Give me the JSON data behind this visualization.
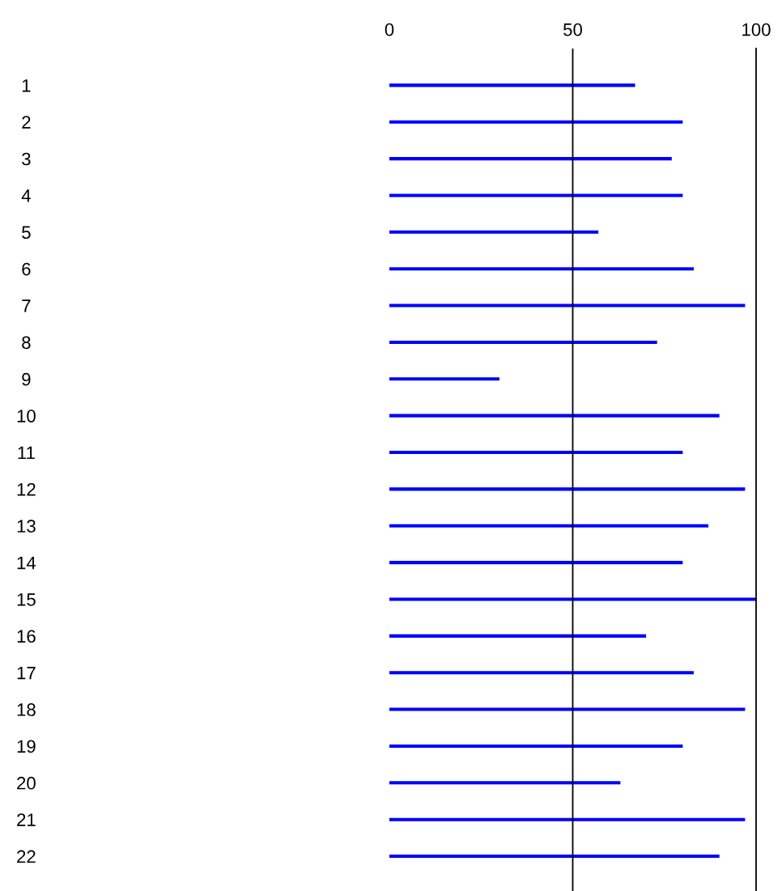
{
  "chart_data": {
    "type": "bar",
    "orientation": "horizontal",
    "categories": [
      "1",
      "2",
      "3",
      "4",
      "5",
      "6",
      "7",
      "8",
      "9",
      "10",
      "11",
      "12",
      "13",
      "14",
      "15",
      "16",
      "17",
      "18",
      "19",
      "20",
      "21",
      "22"
    ],
    "series": [
      {
        "color": "#0000ff",
        "axis": "x2",
        "values": [
          67,
          80,
          77,
          80,
          57,
          83,
          97,
          73,
          30,
          90,
          80,
          97,
          87,
          80,
          100,
          70,
          83,
          97,
          80,
          63,
          97,
          90
        ]
      }
    ],
    "x2lim": [
      0,
      100
    ],
    "x2ticks": [
      0,
      50,
      100
    ],
    "ref_lines": [
      {
        "axis": "x2",
        "value": 50,
        "color": "#000000"
      }
    ],
    "grid": false,
    "legend": false
  }
}
